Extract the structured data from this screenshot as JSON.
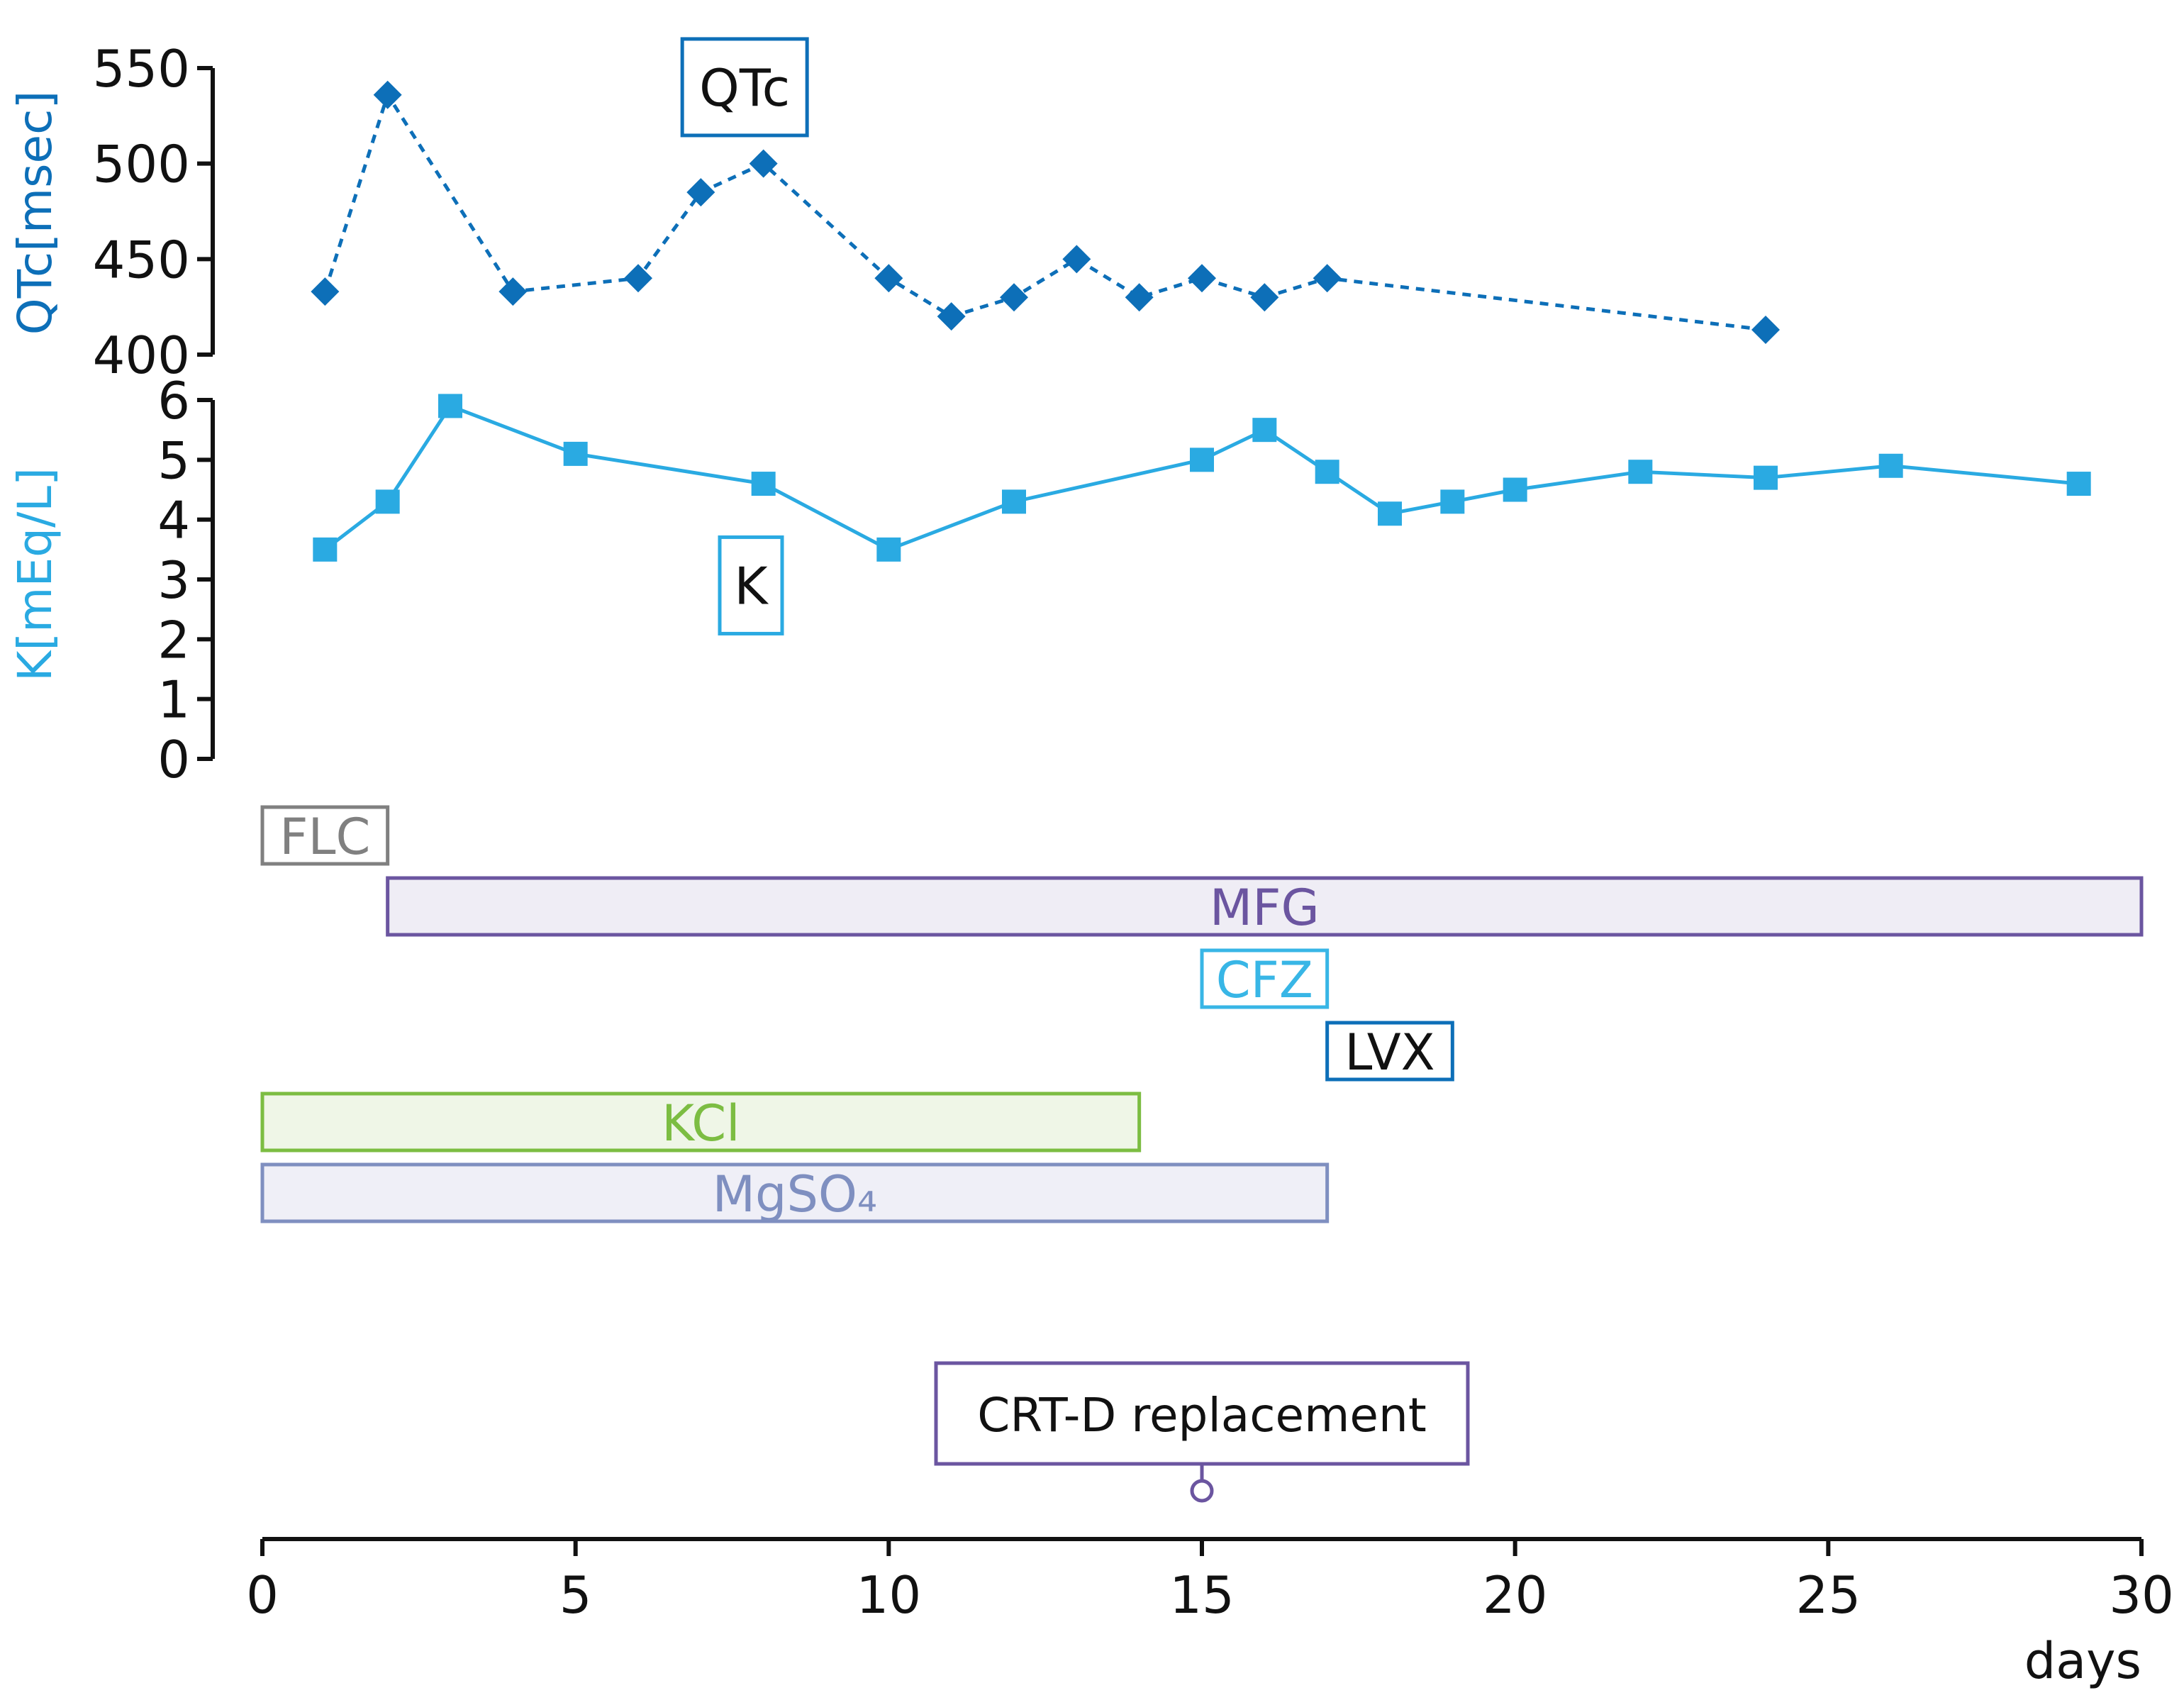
{
  "chart_data": {
    "type": "line",
    "x_axis": {
      "label": "days",
      "range": [
        0,
        30
      ],
      "ticks": [
        0,
        5,
        10,
        15,
        20,
        25,
        30
      ]
    },
    "series": [
      {
        "name": "QTc",
        "ylabel": "QTc[msec]",
        "ylim": [
          400,
          550
        ],
        "yticks": [
          400,
          450,
          500,
          550
        ],
        "marker": "diamond",
        "line": "dashed",
        "color": "#0d6fb8",
        "points": [
          [
            1,
            433
          ],
          [
            2,
            536
          ],
          [
            4,
            433
          ],
          [
            6,
            440
          ],
          [
            7,
            485
          ],
          [
            8,
            500
          ],
          [
            10,
            440
          ],
          [
            11,
            420
          ],
          [
            12,
            430
          ],
          [
            13,
            450
          ],
          [
            14,
            430
          ],
          [
            15,
            440
          ],
          [
            16,
            430
          ],
          [
            17,
            440
          ],
          [
            24,
            413
          ]
        ]
      },
      {
        "name": "K",
        "ylabel": "K[mEq/L]",
        "ylim": [
          0,
          6
        ],
        "yticks": [
          0,
          1,
          2,
          3,
          4,
          5,
          6
        ],
        "marker": "square",
        "line": "solid",
        "color": "#2aaae2",
        "points": [
          [
            1,
            3.5
          ],
          [
            2,
            4.3
          ],
          [
            3,
            5.9
          ],
          [
            5,
            5.1
          ],
          [
            8,
            4.6
          ],
          [
            10,
            3.5
          ],
          [
            12,
            4.3
          ],
          [
            15,
            5.0
          ],
          [
            16,
            5.5
          ],
          [
            17,
            4.8
          ],
          [
            18,
            4.1
          ],
          [
            19,
            4.3
          ],
          [
            20,
            4.5
          ],
          [
            22,
            4.8
          ],
          [
            24,
            4.7
          ],
          [
            26,
            4.9
          ],
          [
            29,
            4.6
          ]
        ]
      }
    ],
    "series_labels": [
      {
        "text": "QTc",
        "series": "QTc",
        "x": 7.7,
        "y": 540
      },
      {
        "text": "K",
        "series": "K",
        "x": 7.8,
        "y": 2.9
      }
    ],
    "medications": [
      {
        "label": "FLC",
        "start": 0,
        "end": 2,
        "stroke": "#808080",
        "fill": "#ffffff",
        "text_color": "#808080"
      },
      {
        "label": "MFG",
        "start": 2,
        "end": 30,
        "stroke": "#6b55a0",
        "fill": "#efedf5",
        "text_color": "#6b55a0"
      },
      {
        "label": "CFZ",
        "start": 15,
        "end": 17,
        "stroke": "#38b6e6",
        "fill": "#ffffff",
        "text_color": "#38b6e6"
      },
      {
        "label": "LVX",
        "start": 17,
        "end": 19,
        "stroke": "#0d6fb8",
        "fill": "#ffffff",
        "text_color": "#111111"
      },
      {
        "label": "KCl",
        "start": 0,
        "end": 14,
        "stroke": "#7cbd42",
        "fill": "#eff6e7",
        "text_color": "#7cbd42"
      },
      {
        "label": "MgSO₄",
        "start": 0,
        "end": 17,
        "stroke": "#7f8fc0",
        "fill": "#efeff7",
        "text_color": "#7f8fc0"
      }
    ],
    "events": [
      {
        "label": "CRT-D replacement",
        "day": 15,
        "color": "#6b55a0"
      }
    ]
  }
}
